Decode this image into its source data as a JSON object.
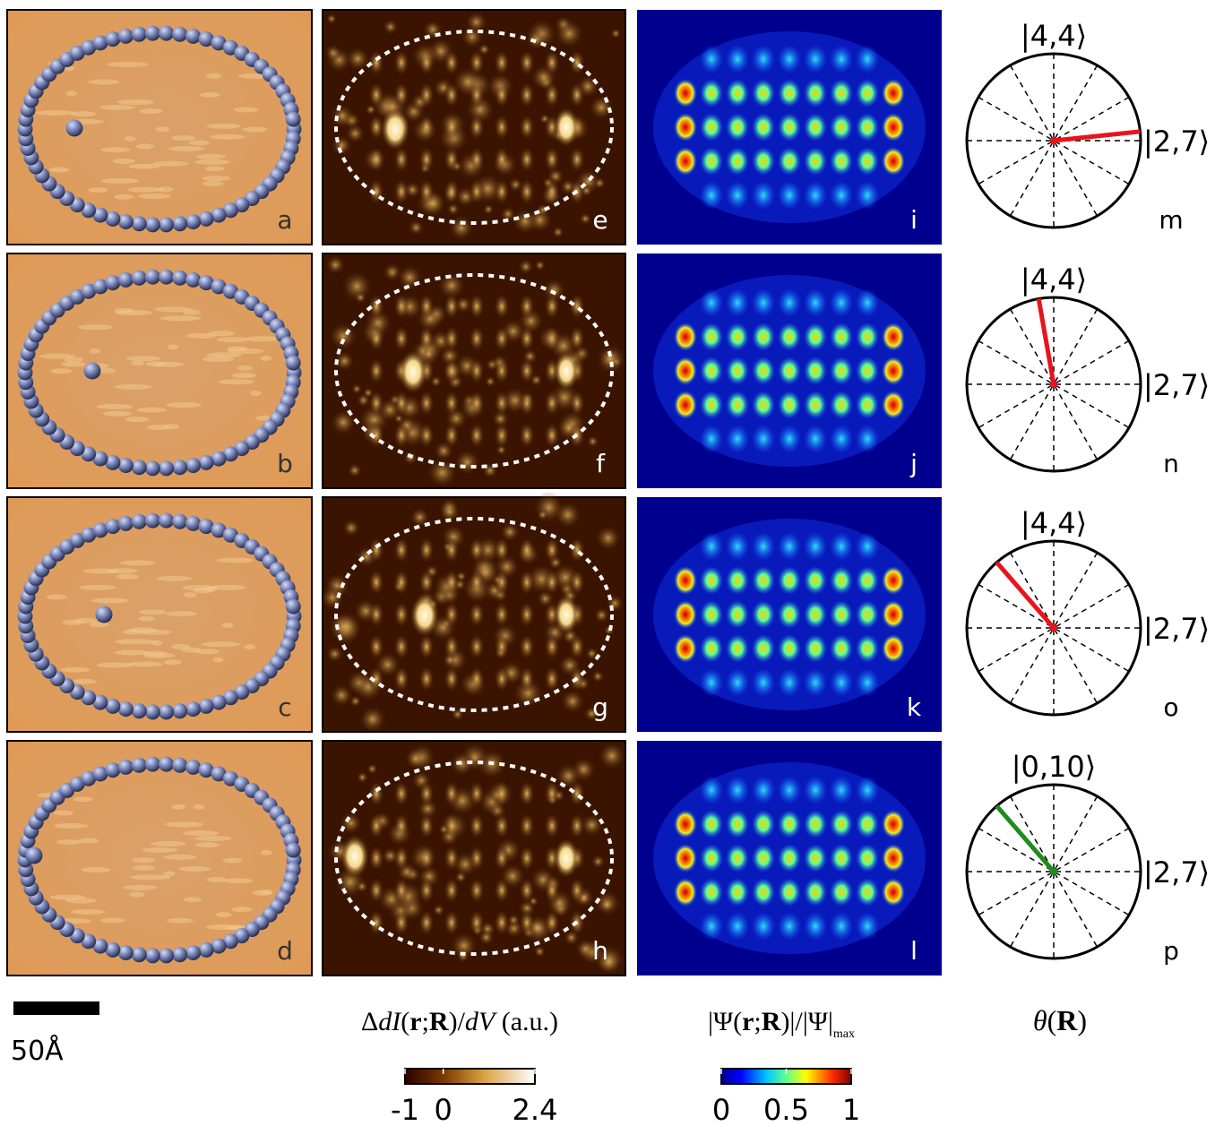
{
  "rows": [
    {
      "topo_label": "a",
      "map_label": "e",
      "theory_label": "i",
      "dial": {
        "label": "m",
        "top_state": "|4,4⟩",
        "right_state": "|2,7⟩",
        "theta_deg": 6,
        "color": "#e8141c"
      }
    },
    {
      "topo_label": "b",
      "map_label": "f",
      "theory_label": "j",
      "dial": {
        "label": "n",
        "top_state": "|4,4⟩",
        "right_state": "|2,7⟩",
        "theta_deg": 100,
        "color": "#e8141c"
      }
    },
    {
      "topo_label": "c",
      "map_label": "g",
      "theory_label": "k",
      "dial": {
        "label": "o",
        "top_state": "|4,4⟩",
        "right_state": "|2,7⟩",
        "theta_deg": 131,
        "color": "#e8141c"
      }
    },
    {
      "topo_label": "d",
      "map_label": "h",
      "theory_label": "l",
      "dial": {
        "label": "p",
        "top_state": "|0,10⟩",
        "right_state": "|2,7⟩",
        "theta_deg": 131,
        "color": "#1e8c1e"
      }
    }
  ],
  "scale_bar": {
    "label": "50Å"
  },
  "captions": {
    "map": [
      "Δ",
      "dI",
      "(",
      "r",
      ";",
      "R",
      ")/",
      "dV",
      " (a.u.)"
    ],
    "theory": [
      "|Ψ(",
      "r",
      ";",
      "R",
      ")|/|Ψ|",
      "max"
    ],
    "theta": [
      "θ",
      "(",
      "R",
      ")"
    ]
  },
  "colorbars": [
    {
      "lim": [
        -1,
        2.4
      ],
      "ticks": [
        -1,
        0,
        2.4
      ]
    },
    {
      "lim": [
        0,
        1
      ],
      "ticks": [
        0,
        0.5,
        1
      ]
    }
  ]
}
